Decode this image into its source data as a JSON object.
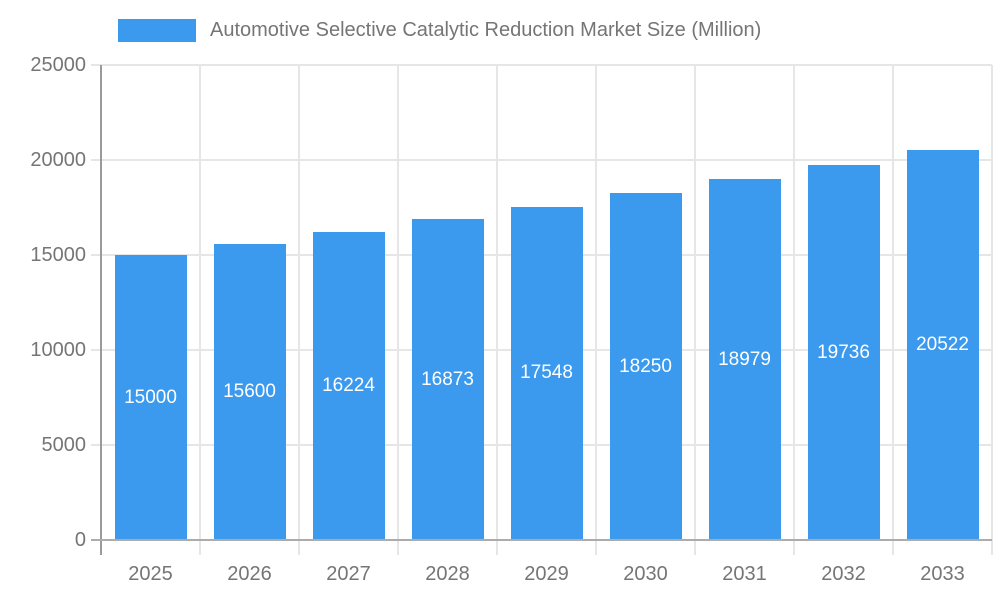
{
  "chart_data": {
    "type": "bar",
    "title": "Automotive Selective Catalytic Reduction Market Size (Million)",
    "legend": {
      "position": "top",
      "label": "Automotive Selective Catalytic Reduction Market Size (Million)"
    },
    "categories": [
      "2025",
      "2026",
      "2027",
      "2028",
      "2029",
      "2030",
      "2031",
      "2032",
      "2033"
    ],
    "values": [
      15000,
      15600,
      16224,
      16873,
      17548,
      18250,
      18979,
      19736,
      20522
    ],
    "xlabel": "",
    "ylabel": "",
    "ylim": [
      0,
      25000
    ],
    "yticks": [
      0,
      5000,
      10000,
      15000,
      20000,
      25000
    ],
    "grid": true,
    "bar_value_labels_shown": true,
    "colors": {
      "bar": "#3B99EE",
      "grid": "#E6E6E6",
      "axis_y_border": "#9A9A9A",
      "axis_x_border": "#ACACAC",
      "tick_text": "#757575",
      "bar_label_text": "#FFFFFF"
    }
  }
}
